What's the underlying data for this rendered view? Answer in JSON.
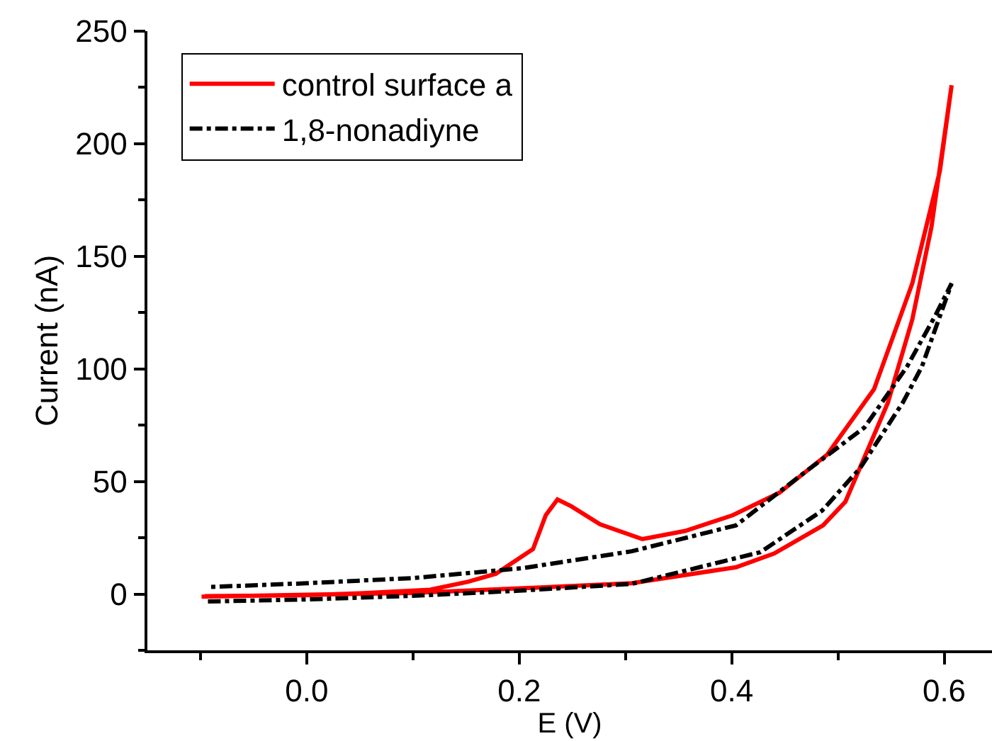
{
  "chart_data": {
    "type": "line",
    "xlabel": "E (V)",
    "ylabel": "Current (nA)",
    "xlim": [
      -0.15,
      0.645
    ],
    "ylim": [
      -25,
      250
    ],
    "xticks": [
      {
        "value": -0.1,
        "label": null
      },
      {
        "value": 0.0,
        "label": "0.0"
      },
      {
        "value": 0.1,
        "label": null
      },
      {
        "value": 0.2,
        "label": "0.2"
      },
      {
        "value": 0.3,
        "label": null
      },
      {
        "value": 0.4,
        "label": "0.4"
      },
      {
        "value": 0.5,
        "label": null
      },
      {
        "value": 0.6,
        "label": "0.6"
      }
    ],
    "yticks": [
      {
        "value": -25,
        "label": null
      },
      0,
      {
        "value": 25,
        "label": null
      },
      50,
      {
        "value": 75,
        "label": null
      },
      100,
      {
        "value": 125,
        "label": null
      },
      150,
      {
        "value": 175,
        "label": null
      },
      200,
      {
        "value": 225,
        "label": null
      },
      250
    ],
    "legend": "top left",
    "marker": "none",
    "series": [
      {
        "name": "control surface a",
        "color": "#ff0000",
        "line_style": "solid",
        "x": [
          -0.099,
          0.0,
          0.1,
          0.2,
          0.306,
          0.404,
          0.44,
          0.486,
          0.507,
          0.547,
          0.57,
          0.588,
          0.607,
          0.596,
          0.57,
          0.534,
          0.49,
          0.445,
          0.401,
          0.356,
          0.316,
          0.276,
          0.249,
          0.236,
          0.225,
          0.213,
          0.178,
          0.152,
          0.116,
          0.05,
          -0.002,
          -0.096
        ],
        "values": [
          -1.2,
          -0.3,
          0.5,
          2.5,
          4.8,
          11.9,
          18,
          30.5,
          41,
          85,
          122,
          163,
          226,
          188,
          138,
          91,
          62,
          45,
          35,
          28,
          24.4,
          31,
          39,
          42,
          35,
          20,
          9,
          5.5,
          1.9,
          0.3,
          -0.5,
          -0.9
        ]
      },
      {
        "name": "1,8-nonadiyne",
        "color": "#000000",
        "line_style": "dashdot",
        "x": [
          -0.093,
          0.0,
          0.1,
          0.2,
          0.306,
          0.427,
          0.485,
          0.521,
          0.561,
          0.579,
          0.607,
          0.592,
          0.565,
          0.525,
          0.463,
          0.404,
          0.306,
          0.203,
          0.1,
          0.0,
          -0.093
        ],
        "values": [
          -3.3,
          -2.4,
          -0.8,
          1.5,
          4.5,
          18.6,
          37,
          56,
          85,
          101,
          138,
          124,
          101,
          74,
          52,
          30.5,
          19,
          11.5,
          7.1,
          4.8,
          3.1
        ]
      }
    ]
  }
}
